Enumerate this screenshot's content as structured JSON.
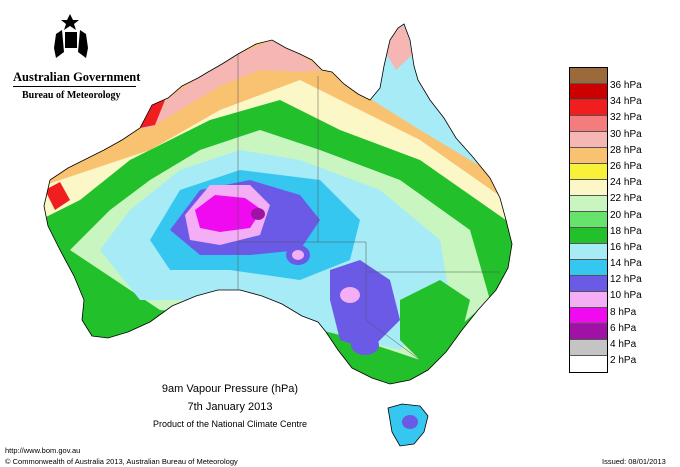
{
  "organisation": {
    "government": "Australian Government",
    "bureau": "Bureau of Meteorology"
  },
  "map": {
    "title": "9am Vapour Pressure (hPa)",
    "date": "7th January 2013",
    "product": "Product of the National Climate Centre",
    "region": "Australia"
  },
  "legend": [
    {
      "label": "36 hPa",
      "color": "#9a6a3a"
    },
    {
      "label": "34 hPa",
      "color": "#cc0000"
    },
    {
      "label": "32 hPa",
      "color": "#f01e1e"
    },
    {
      "label": "30 hPa",
      "color": "#f47c7c"
    },
    {
      "label": "28 hPa",
      "color": "#f6b6b4"
    },
    {
      "label": "26 hPa",
      "color": "#f9c271"
    },
    {
      "label": "24 hPa",
      "color": "#f7f13a"
    },
    {
      "label": "22 hPa",
      "color": "#fcf7c6"
    },
    {
      "label": "20 hPa",
      "color": "#c8f5c0"
    },
    {
      "label": "18 hPa",
      "color": "#66e36a"
    },
    {
      "label": "16 hPa",
      "color": "#22c02a"
    },
    {
      "label": "14 hPa",
      "color": "#a6ebf6"
    },
    {
      "label": "12 hPa",
      "color": "#36c7f0"
    },
    {
      "label": "10 hPa",
      "color": "#6a5ae6"
    },
    {
      "label": "8 hPa",
      "color": "#f4aef6"
    },
    {
      "label": "6 hPa",
      "color": "#f00af0"
    },
    {
      "label": "4 hPa",
      "color": "#a012a6"
    },
    {
      "label": "2 hPa",
      "color": "#c4c4c4"
    },
    {
      "label": "",
      "color": "#ffffff"
    }
  ],
  "footer": {
    "url": "http://www.bom.gov.au",
    "copyright": "© Commonwealth of Australia 2013, Australian Bureau of Meteorology",
    "issued": "Issued: 08/01/2013"
  }
}
